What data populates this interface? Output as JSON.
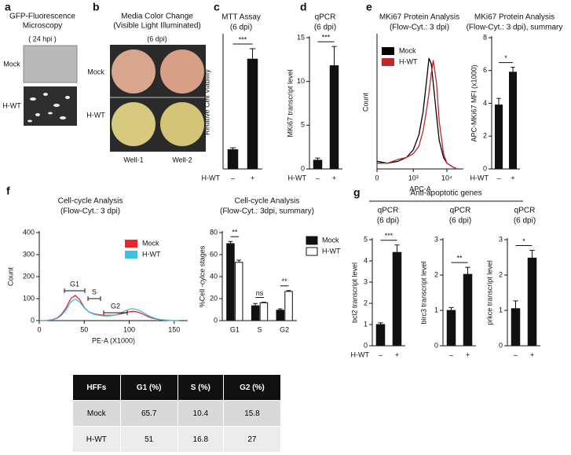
{
  "panels": {
    "a": {
      "label": "a",
      "title": "GFP-Fluorescence",
      "title_line2": "Microscopy",
      "subtitle": "( 24 hpi )",
      "rows": [
        "Mock",
        "H-WT"
      ]
    },
    "b": {
      "label": "b",
      "title": "Media Color Change",
      "title_line2": "(Visible Light Illuminated)",
      "subtitle": "(6 dpi)",
      "rows": [
        "Mock",
        "H-WT"
      ],
      "columns": [
        "Well-1",
        "Well-2"
      ]
    }
  },
  "chart_data": [
    {
      "panel": "c",
      "type": "bar",
      "title": "MTT Assay",
      "subtitle": "(6 dpi)",
      "y_label": "Relative Cell Viability",
      "x_label": "H-WT",
      "categories": [
        "–",
        "+"
      ],
      "series": [
        {
          "color": "#111111",
          "values": [
            0.065,
            0.37
          ],
          "errors": [
            0.006,
            0.035
          ]
        }
      ],
      "ylim": [
        0,
        0.45
      ],
      "significance": [
        "***"
      ]
    },
    {
      "panel": "d",
      "type": "bar",
      "title": "qPCR",
      "subtitle": "(6 dpi)",
      "y_label": "MKi67 transcript level",
      "x_label": "H-WT",
      "categories": [
        "–",
        "+"
      ],
      "series": [
        {
          "color": "#111111",
          "values": [
            1,
            11.8
          ],
          "errors": [
            0.25,
            2.2
          ]
        }
      ],
      "ylim": [
        0,
        15
      ],
      "yticks": [
        0,
        5,
        10,
        15
      ],
      "significance": [
        "***"
      ]
    },
    {
      "panel": "e",
      "type": "line",
      "title": "MKi67 Protein Analysis",
      "subtitle": "(Flow-Cyt.: 3 dpi)",
      "y_label": "Count",
      "x_label": "APC-A",
      "xscale": "symlog",
      "x": [
        0,
        100,
        300,
        600,
        1000,
        1500,
        2000,
        2500,
        3000,
        3500,
        4000,
        5000,
        6000,
        8000,
        10000,
        15000,
        20000
      ],
      "series": [
        {
          "name": "Mock",
          "color": "#000000",
          "values": [
            4,
            3,
            4,
            6,
            10,
            18,
            30,
            45,
            58,
            55,
            45,
            28,
            15,
            6,
            3,
            1,
            0
          ]
        },
        {
          "name": "H-WT",
          "color": "#c0272d",
          "values": [
            3,
            3,
            5,
            6,
            8,
            12,
            20,
            30,
            40,
            50,
            57,
            45,
            25,
            8,
            3,
            1,
            0
          ]
        }
      ],
      "xlim": [
        0,
        30000
      ],
      "ylim": [
        0,
        70
      ],
      "xticks": [
        0,
        {
          "value": 1000,
          "label": "10³"
        },
        {
          "value": 10000,
          "label": "10⁴"
        }
      ],
      "legend": "top-left"
    },
    {
      "type": "bar",
      "title": "MKi67 Protein Analysis",
      "subtitle": "(Flow-Cyt.: 3 dpi), summary",
      "y_label": "APC-MKi67 MFI (x1000)",
      "x_label": "H-WT",
      "categories": [
        "–",
        "+"
      ],
      "series": [
        {
          "color": "#111111",
          "values": [
            3.9,
            5.9
          ],
          "errors": [
            0.4,
            0.3
          ]
        }
      ],
      "ylim": [
        0,
        8
      ],
      "yticks": [
        0,
        2,
        4,
        6,
        8
      ],
      "significance": [
        "*"
      ]
    },
    {
      "panel": "f",
      "type": "line",
      "title": "Cell-cycle Analysis",
      "subtitle": "(Flow-Cyt.: 3 dpi)",
      "y_label": "Count",
      "x_label": "PE-A (X1000)",
      "x": [
        0,
        5,
        10,
        15,
        20,
        25,
        30,
        35,
        40,
        45,
        50,
        55,
        60,
        65,
        70,
        75,
        80,
        85,
        90,
        95,
        100,
        105,
        110,
        115,
        120,
        125,
        130,
        135,
        140,
        145,
        150,
        155
      ],
      "series": [
        {
          "name": "Mock",
          "color": "#e8262a",
          "values": [
            0,
            0,
            2,
            5,
            12,
            30,
            60,
            100,
            115,
            95,
            60,
            40,
            32,
            28,
            25,
            24,
            24,
            26,
            30,
            35,
            40,
            42,
            38,
            30,
            20,
            12,
            7,
            4,
            2,
            1,
            0,
            0
          ]
        },
        {
          "name": "H-WT",
          "color": "#3cbfe0",
          "values": [
            0,
            0,
            2,
            4,
            10,
            25,
            50,
            85,
            98,
            85,
            58,
            40,
            30,
            25,
            22,
            21,
            22,
            26,
            34,
            44,
            52,
            54,
            48,
            38,
            26,
            16,
            9,
            5,
            3,
            1,
            0,
            0
          ]
        }
      ],
      "xlim": [
        0,
        165
      ],
      "xticks": [
        0,
        50,
        100,
        150
      ],
      "ylim": [
        0,
        400
      ],
      "yticks": [
        0,
        100,
        200,
        300,
        400
      ],
      "legend": "top-right",
      "gates": [
        "G1",
        "S",
        "G2"
      ]
    },
    {
      "type": "bar",
      "title": "Cell-cycle Analysis",
      "subtitle": "(Flow-Cyt.: 3dpi, summary)",
      "y_label": "%Cell -cylce stages",
      "categories": [
        "G1",
        "S",
        "G2"
      ],
      "series": [
        {
          "name": "Mock",
          "color": "#111111",
          "values": [
            70,
            13.5,
            9.5
          ],
          "errors": [
            2,
            2,
            1.2
          ]
        },
        {
          "name": "H-WT",
          "color": "#ffffff",
          "values": [
            53,
            16.3,
            26.5
          ],
          "errors": [
            2,
            0.5,
            0.8
          ]
        }
      ],
      "ylim": [
        0,
        80
      ],
      "yticks": [
        0,
        20,
        40,
        60,
        80
      ],
      "legend": "right",
      "significance": [
        "**",
        "ns",
        "**"
      ]
    },
    {
      "panel": "g",
      "group_title": "Anti-apoptotic genes",
      "type": "bar",
      "title": "qPCR",
      "subtitle": "(6 dpi)",
      "y_label": "bcl2 transcript  level",
      "x_label": "H-WT",
      "categories": [
        "–",
        "+"
      ],
      "series": [
        {
          "color": "#111111",
          "values": [
            1,
            4.4
          ],
          "errors": [
            0.08,
            0.35
          ]
        }
      ],
      "ylim": [
        0,
        5
      ],
      "yticks": [
        0,
        1,
        2,
        3,
        4,
        5
      ],
      "significance": [
        "***"
      ]
    },
    {
      "type": "bar",
      "title": "qPCR",
      "subtitle": "(6 dpi)",
      "y_label": "birc3 transcript level",
      "categories": [
        "–",
        "+"
      ],
      "series": [
        {
          "color": "#111111",
          "values": [
            1,
            2.02
          ],
          "errors": [
            0.08,
            0.2
          ]
        }
      ],
      "ylim": [
        0,
        3
      ],
      "yticks": [
        0,
        1,
        2,
        3
      ],
      "significance": [
        "**"
      ]
    },
    {
      "type": "bar",
      "title": "qPCR",
      "subtitle": "(6 dpi)",
      "y_label": "prkce transcript level",
      "categories": [
        "–",
        "+"
      ],
      "series": [
        {
          "color": "#111111",
          "values": [
            1.05,
            2.48
          ],
          "errors": [
            0.22,
            0.22
          ]
        }
      ],
      "ylim": [
        0,
        3
      ],
      "yticks": [
        0,
        1,
        2,
        3
      ],
      "significance": [
        "*"
      ]
    }
  ],
  "table": {
    "header": [
      "HFFs",
      "G1 (%)",
      "S (%)",
      "G2 (%)"
    ],
    "rows": [
      [
        "Mock",
        65.7,
        10.4,
        15.8
      ],
      [
        "H-WT",
        51,
        16.8,
        27
      ]
    ]
  }
}
